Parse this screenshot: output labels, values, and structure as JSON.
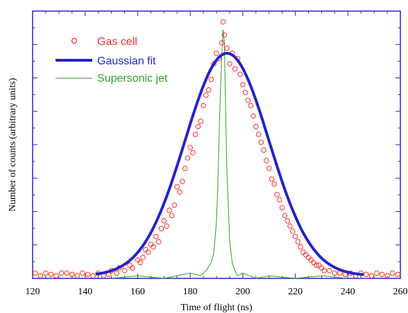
{
  "chart_data": {
    "type": "scatter",
    "xlabel": "Time of flight (ns)",
    "ylabel": "Number of counts (arbitrary units)",
    "xlim": [
      120,
      260
    ],
    "ylim": [
      0,
      1.0
    ],
    "x_ticks": [
      120,
      140,
      160,
      180,
      200,
      220,
      240,
      260
    ],
    "y_tick_labels_shown": false,
    "grid": false,
    "legend_position": "top-left",
    "series": [
      {
        "name": "Gas cell",
        "kind": "scatter",
        "marker": "open-circle",
        "color": "#ff2a2a",
        "points": [
          [
            121,
            0.02
          ],
          [
            123,
            0.01
          ],
          [
            125,
            0.02
          ],
          [
            127,
            0.015
          ],
          [
            129,
            0.01
          ],
          [
            131,
            0.02
          ],
          [
            133,
            0.02
          ],
          [
            135,
            0.015
          ],
          [
            137,
            0.01
          ],
          [
            139,
            0.02
          ],
          [
            141,
            0.015
          ],
          [
            143,
            0.01
          ],
          [
            145,
            0.02
          ],
          [
            147,
            0.01
          ],
          [
            149,
            0.015
          ],
          [
            150,
            0.03
          ],
          [
            152,
            0.02
          ],
          [
            153,
            0.04
          ],
          [
            155,
            0.03
          ],
          [
            157,
            0.05
          ],
          [
            158,
            0.04
          ],
          [
            160,
            0.07
          ],
          [
            161,
            0.06
          ],
          [
            162,
            0.08
          ],
          [
            163,
            0.11
          ],
          [
            164,
            0.1
          ],
          [
            165,
            0.13
          ],
          [
            166,
            0.12
          ],
          [
            167,
            0.16
          ],
          [
            168,
            0.14
          ],
          [
            169,
            0.19
          ],
          [
            170,
            0.22
          ],
          [
            171,
            0.2
          ],
          [
            172,
            0.26
          ],
          [
            173,
            0.24
          ],
          [
            174,
            0.28
          ],
          [
            175,
            0.35
          ],
          [
            176,
            0.33
          ],
          [
            177,
            0.37
          ],
          [
            178,
            0.42
          ],
          [
            179,
            0.46
          ],
          [
            180,
            0.5
          ],
          [
            181,
            0.48
          ],
          [
            182,
            0.55
          ],
          [
            183,
            0.58
          ],
          [
            184,
            0.6
          ],
          [
            185,
            0.66
          ],
          [
            186,
            0.7
          ],
          [
            187,
            0.72
          ],
          [
            188,
            0.76
          ],
          [
            189,
            0.82
          ],
          [
            190,
            0.86
          ],
          [
            191,
            0.84
          ],
          [
            192,
            0.9
          ],
          [
            192.5,
            0.98
          ],
          [
            193,
            0.93
          ],
          [
            194,
            0.88
          ],
          [
            195,
            0.82
          ],
          [
            196,
            0.86
          ],
          [
            197,
            0.8
          ],
          [
            198,
            0.84
          ],
          [
            199,
            0.78
          ],
          [
            200,
            0.74
          ],
          [
            201,
            0.71
          ],
          [
            202,
            0.68
          ],
          [
            203,
            0.66
          ],
          [
            204,
            0.62
          ],
          [
            205,
            0.58
          ],
          [
            206,
            0.55
          ],
          [
            207,
            0.52
          ],
          [
            208,
            0.49
          ],
          [
            209,
            0.45
          ],
          [
            210,
            0.42
          ],
          [
            211,
            0.38
          ],
          [
            212,
            0.36
          ],
          [
            213,
            0.32
          ],
          [
            214,
            0.3
          ],
          [
            215,
            0.27
          ],
          [
            216,
            0.24
          ],
          [
            217,
            0.22
          ],
          [
            218,
            0.2
          ],
          [
            219,
            0.18
          ],
          [
            220,
            0.16
          ],
          [
            221,
            0.14
          ],
          [
            222,
            0.12
          ],
          [
            223,
            0.1
          ],
          [
            224,
            0.09
          ],
          [
            225,
            0.08
          ],
          [
            226,
            0.07
          ],
          [
            227,
            0.06
          ],
          [
            228,
            0.05
          ],
          [
            229,
            0.05
          ],
          [
            230,
            0.04
          ],
          [
            231,
            0.03
          ],
          [
            233,
            0.03
          ],
          [
            235,
            0.02
          ],
          [
            237,
            0.02
          ],
          [
            239,
            0.015
          ],
          [
            241,
            0.02
          ],
          [
            243,
            0.01
          ],
          [
            245,
            0.02
          ],
          [
            247,
            0.015
          ],
          [
            249,
            0.01
          ],
          [
            251,
            0.02
          ],
          [
            253,
            0.015
          ],
          [
            255,
            0.01
          ],
          [
            257,
            0.02
          ],
          [
            259,
            0.015
          ]
        ]
      },
      {
        "name": "Gaussian fit",
        "kind": "gaussian",
        "color": "#2424c8",
        "amplitude": 0.85,
        "center": 194,
        "sigma": 16,
        "baseline": 0.01,
        "x_range": [
          144,
          246
        ]
      },
      {
        "name": "Supersonic jet",
        "kind": "line",
        "color": "#2e9e2e",
        "x": [
          150,
          160,
          170,
          180,
          184,
          186,
          188,
          189,
          190,
          190.5,
          191,
          191.5,
          192,
          192.5,
          193,
          193.5,
          194,
          194.5,
          195,
          195.5,
          196,
          197,
          198,
          200,
          205,
          210,
          220,
          230,
          240
        ],
        "y": [
          0.0,
          0.01,
          0.0,
          0.02,
          0.01,
          0.03,
          0.06,
          0.1,
          0.22,
          0.35,
          0.55,
          0.72,
          0.85,
          0.95,
          0.9,
          0.62,
          0.4,
          0.28,
          0.15,
          0.1,
          0.06,
          0.03,
          0.01,
          0.02,
          0.0,
          0.01,
          0.0,
          0.01,
          0.0
        ]
      }
    ]
  }
}
